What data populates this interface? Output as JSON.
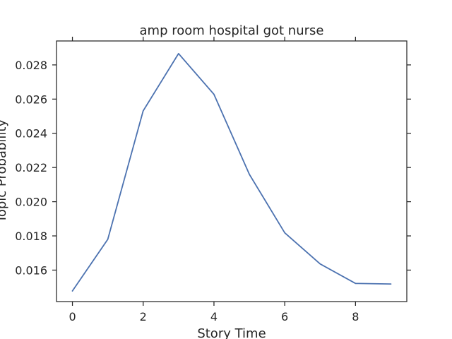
{
  "chart_data": {
    "type": "line",
    "title": "amp room hospital got nurse",
    "xlabel": "Story Time",
    "ylabel": "Topic Probability",
    "x": [
      0,
      1,
      2,
      3,
      4,
      5,
      6,
      7,
      8,
      9
    ],
    "series": [
      {
        "values": [
          0.01478,
          0.0178,
          0.02531,
          0.02866,
          0.02628,
          0.0216,
          0.01818,
          0.01636,
          0.01522,
          0.01519
        ],
        "color": "#4c72b0"
      }
    ],
    "xlim": [
      -0.45,
      9.45
    ],
    "ylim": [
      0.01416,
      0.0294
    ],
    "xticks": [
      0,
      2,
      4,
      6,
      8
    ],
    "xtick_labels": [
      "0",
      "2",
      "4",
      "6",
      "8"
    ],
    "yticks": [
      0.016,
      0.018,
      0.02,
      0.022,
      0.024,
      0.026,
      0.028
    ],
    "ytick_labels": [
      "0.016",
      "0.018",
      "0.020",
      "0.022",
      "0.024",
      "0.026",
      "0.028"
    ],
    "grid": false,
    "legend": "none"
  }
}
